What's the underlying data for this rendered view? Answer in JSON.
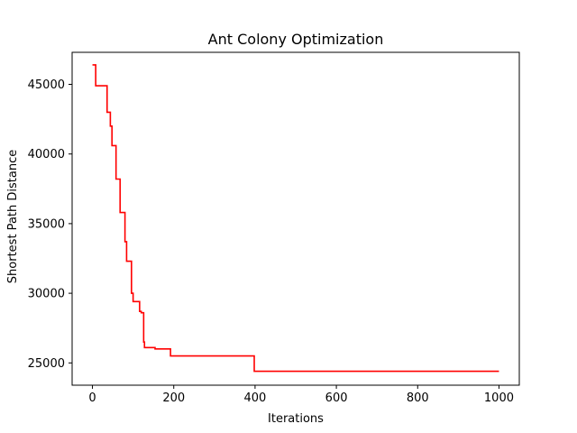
{
  "chart_data": {
    "type": "line",
    "title": "Ant Colony Optimization",
    "xlabel": "Iterations",
    "ylabel": "Shortest Path Distance",
    "xlim": [
      -50,
      1050
    ],
    "ylim": [
      23400,
      47300
    ],
    "xticks": [
      0,
      200,
      400,
      600,
      800,
      1000
    ],
    "yticks": [
      25000,
      30000,
      35000,
      40000,
      45000
    ],
    "grid": false,
    "legend": "none",
    "line_style": "step",
    "series": [
      {
        "color": "#ff0000",
        "points": [
          [
            0,
            46400
          ],
          [
            8,
            46400
          ],
          [
            8,
            44900
          ],
          [
            36,
            44900
          ],
          [
            36,
            43000
          ],
          [
            44,
            43000
          ],
          [
            44,
            42000
          ],
          [
            48,
            42000
          ],
          [
            48,
            40600
          ],
          [
            58,
            40600
          ],
          [
            58,
            38200
          ],
          [
            68,
            38200
          ],
          [
            68,
            35800
          ],
          [
            80,
            35800
          ],
          [
            80,
            33700
          ],
          [
            84,
            33700
          ],
          [
            84,
            32300
          ],
          [
            96,
            32300
          ],
          [
            96,
            30000
          ],
          [
            100,
            30000
          ],
          [
            100,
            29400
          ],
          [
            116,
            29400
          ],
          [
            116,
            28700
          ],
          [
            120,
            28700
          ],
          [
            120,
            28600
          ],
          [
            126,
            28600
          ],
          [
            126,
            26500
          ],
          [
            128,
            26500
          ],
          [
            128,
            26100
          ],
          [
            154,
            26100
          ],
          [
            154,
            26000
          ],
          [
            192,
            26000
          ],
          [
            192,
            25500
          ],
          [
            398,
            25500
          ],
          [
            398,
            24400
          ],
          [
            1000,
            24400
          ]
        ]
      }
    ]
  }
}
